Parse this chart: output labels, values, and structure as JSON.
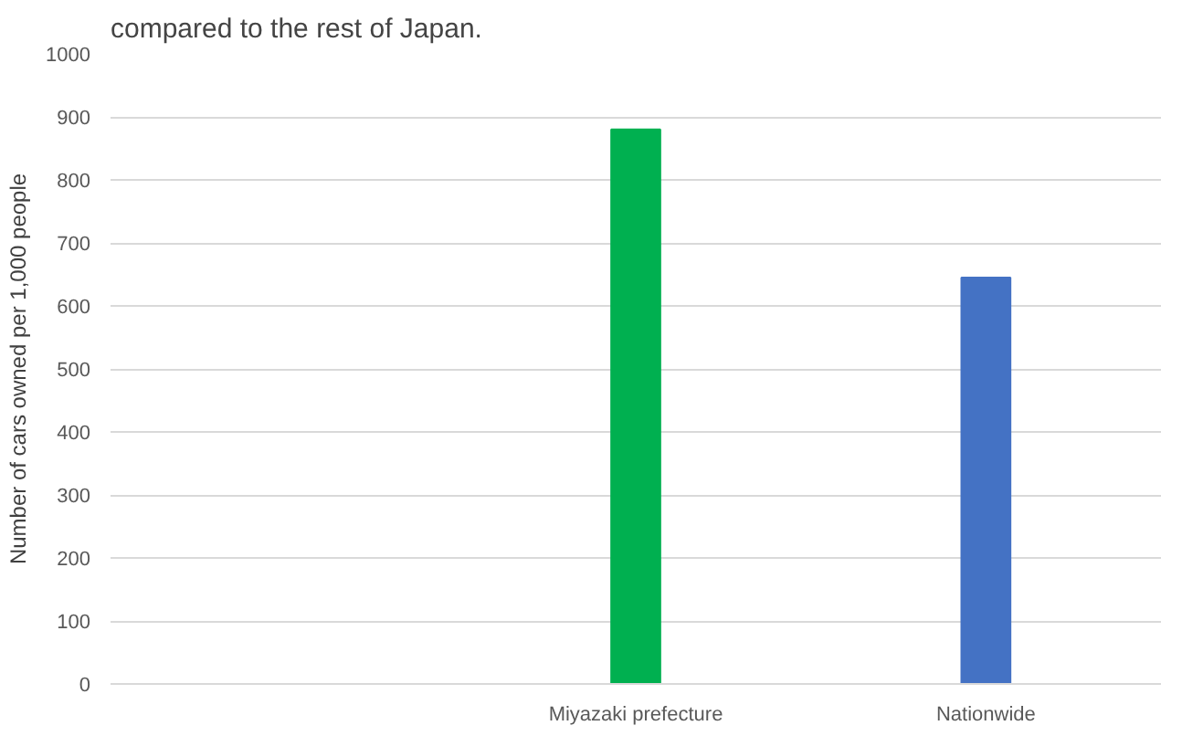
{
  "chart_data": {
    "type": "bar",
    "annotations": [
      "compared to the rest of Japan."
    ],
    "ylabel": "Number of cars owned per 1,000 people",
    "categories": [
      null,
      "Miyazaki prefecture",
      "Nationwide"
    ],
    "values": [
      null,
      880,
      645
    ],
    "colors": [
      "#00b050",
      "#00b050",
      "#4472c4"
    ],
    "ylim": [
      0,
      1000
    ],
    "yticks": [
      0,
      100,
      200,
      300,
      400,
      500,
      600,
      700,
      800,
      900,
      1000
    ],
    "grid": "y"
  }
}
